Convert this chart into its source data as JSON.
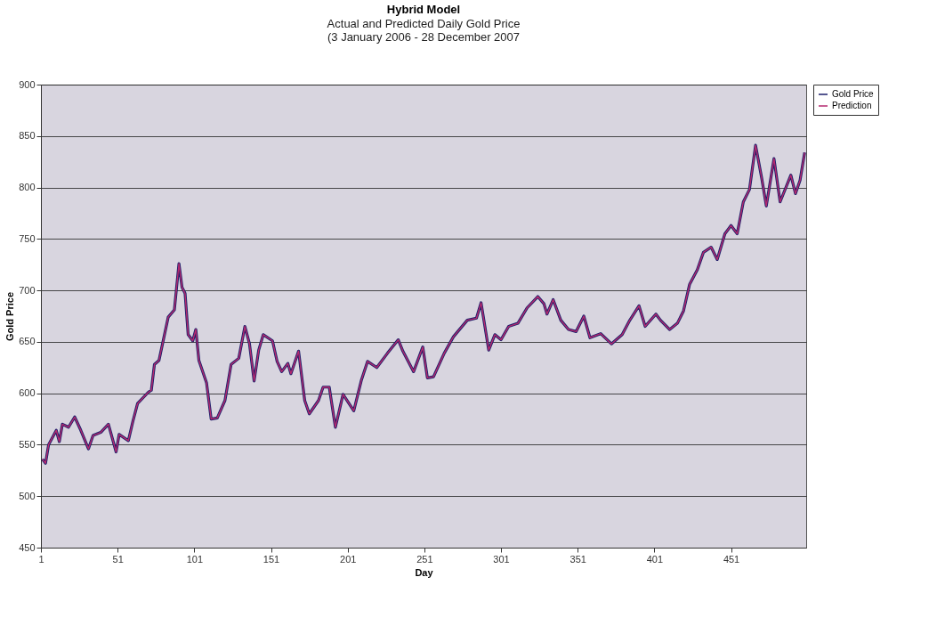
{
  "chart_data": {
    "type": "line",
    "title": "Hybrid Model",
    "subtitle": "Actual and Predicted Daily Gold Price\n(3 January 2006 - 28 December 2007",
    "xlabel": "Day",
    "ylabel": "Gold Price",
    "x": [
      2,
      4,
      6,
      11,
      13,
      15,
      19,
      23,
      27,
      32,
      35,
      40,
      45,
      50,
      52,
      58,
      61,
      64,
      71,
      73,
      75,
      78,
      84,
      88,
      91,
      93,
      95,
      97,
      100,
      102,
      104,
      109,
      112,
      116,
      121,
      125,
      130,
      134,
      137,
      140,
      143,
      146,
      152,
      155,
      158,
      162,
      164,
      169,
      173,
      176,
      182,
      185,
      189,
      193,
      198,
      205,
      210,
      214,
      220,
      227,
      234,
      237,
      244,
      250,
      253,
      257,
      264,
      270,
      279,
      285,
      288,
      293,
      297,
      301,
      306,
      312,
      318,
      325,
      329,
      331,
      335,
      340,
      345,
      350,
      355,
      359,
      366,
      373,
      380,
      385,
      391,
      395,
      402,
      405,
      411,
      416,
      420,
      424,
      429,
      433,
      438,
      442,
      447,
      451,
      455,
      459,
      463,
      467,
      471,
      474,
      479,
      483,
      490,
      493,
      496,
      499
    ],
    "series": [
      {
        "name": "Gold Price",
        "color": "#1c1f6b",
        "values": [
          536,
          532,
          550,
          564,
          553,
          570,
          567,
          577,
          564,
          546,
          559,
          562,
          570,
          543,
          560,
          554,
          573,
          590,
          601,
          603,
          628,
          632,
          674,
          681,
          726,
          703,
          697,
          657,
          651,
          662,
          632,
          610,
          575,
          576,
          593,
          628,
          634,
          665,
          648,
          612,
          642,
          657,
          651,
          631,
          621,
          629,
          619,
          641,
          593,
          580,
          593,
          606,
          606,
          567,
          599,
          583,
          613,
          631,
          625,
          639,
          652,
          641,
          621,
          645,
          615,
          616,
          639,
          655,
          671,
          673,
          688,
          642,
          657,
          652,
          665,
          668,
          683,
          694,
          687,
          677,
          691,
          671,
          662,
          660,
          675,
          654,
          658,
          648,
          657,
          671,
          685,
          665,
          677,
          671,
          662,
          668,
          680,
          706,
          720,
          737,
          742,
          730,
          755,
          763,
          755,
          786,
          798,
          841,
          809,
          782,
          828,
          786,
          812,
          794,
          807,
          834
        ]
      },
      {
        "name": "Prediction",
        "color": "#b5296f",
        "values": [
          536,
          532,
          550,
          564,
          553,
          570,
          567,
          577,
          564,
          546,
          559,
          562,
          570,
          543,
          560,
          554,
          573,
          590,
          601,
          603,
          628,
          632,
          674,
          681,
          726,
          703,
          697,
          657,
          651,
          662,
          632,
          610,
          575,
          576,
          593,
          628,
          634,
          665,
          648,
          612,
          642,
          657,
          651,
          631,
          621,
          629,
          619,
          641,
          593,
          580,
          593,
          606,
          606,
          567,
          599,
          583,
          613,
          631,
          625,
          639,
          652,
          641,
          621,
          645,
          615,
          616,
          639,
          655,
          671,
          673,
          688,
          642,
          657,
          652,
          665,
          668,
          683,
          694,
          687,
          677,
          691,
          671,
          662,
          660,
          675,
          654,
          658,
          648,
          657,
          671,
          685,
          665,
          677,
          671,
          662,
          668,
          680,
          706,
          720,
          737,
          742,
          730,
          755,
          763,
          755,
          786,
          798,
          841,
          809,
          782,
          828,
          786,
          812,
          794,
          807,
          834
        ]
      }
    ],
    "xlim": [
      1,
      500
    ],
    "xticks": [
      1,
      51,
      101,
      151,
      201,
      251,
      301,
      351,
      401,
      451
    ],
    "ylim": [
      450,
      900
    ],
    "yticks": [
      450,
      500,
      550,
      600,
      650,
      700,
      750,
      800,
      850,
      900
    ],
    "grid": "y",
    "legend": "right",
    "line_style": "solid",
    "marker": "none"
  }
}
